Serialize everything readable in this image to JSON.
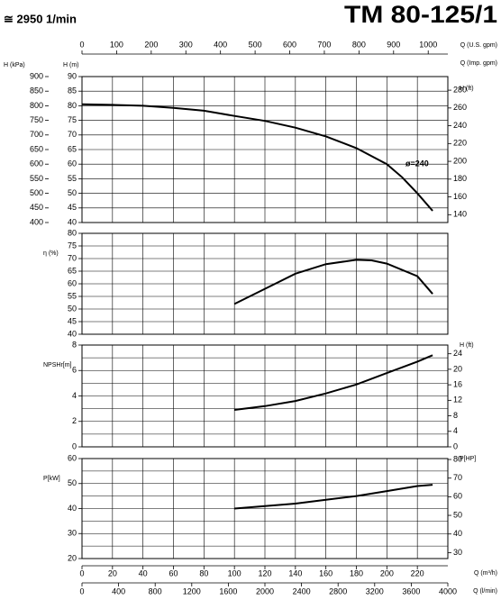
{
  "header": {
    "speed": "≅ 2950 1/min",
    "model": "TM 80-125/1"
  },
  "x_axes": {
    "top": {
      "label": "Q (U.S. gpm)",
      "lim": [
        0,
        1056.7
      ],
      "ticks": [
        0,
        100,
        200,
        300,
        400,
        500,
        600,
        700,
        800,
        900,
        1000
      ]
    },
    "top2": {
      "label": "Q (Imp. gpm)"
    },
    "bottom": {
      "label": "Q (m³/h)",
      "lim": [
        0,
        240
      ],
      "ticks": [
        0,
        20,
        40,
        60,
        80,
        100,
        120,
        140,
        160,
        180,
        200,
        220
      ]
    },
    "bottom2": {
      "label": "Q (l/min)",
      "lim": [
        0,
        4000
      ],
      "ticks": [
        0,
        400,
        800,
        1200,
        1600,
        2000,
        2400,
        2800,
        3200,
        3600,
        4000
      ]
    }
  },
  "chart_data": [
    {
      "type": "line",
      "ylabel": "H (m)",
      "ylim": [
        40,
        90
      ],
      "yticks": [
        40,
        45,
        50,
        55,
        60,
        65,
        70,
        75,
        80,
        85,
        90
      ],
      "y3label": "H (kPa)",
      "y3lim": [
        400,
        900
      ],
      "y3ticks": [
        400,
        450,
        500,
        550,
        600,
        650,
        700,
        750,
        800,
        850,
        900
      ],
      "y2label": "H (ft)",
      "y2lim": [
        131.2,
        295.3
      ],
      "y2ticks": [
        140,
        160,
        180,
        200,
        220,
        240,
        260,
        280
      ],
      "annotation": "ø=240",
      "series": [
        {
          "color": "#000000",
          "x": [
            0,
            20,
            40,
            60,
            80,
            100,
            120,
            140,
            160,
            180,
            200,
            210,
            220,
            230
          ],
          "values": [
            80.5,
            80.3,
            80,
            79.3,
            78.3,
            76.5,
            74.8,
            72.5,
            69.5,
            65.5,
            60,
            55.5,
            50,
            44
          ]
        }
      ]
    },
    {
      "type": "line",
      "ylabel": "η (%)",
      "ylim": [
        40,
        80
      ],
      "yticks": [
        40,
        45,
        50,
        55,
        60,
        65,
        70,
        75,
        80
      ],
      "series": [
        {
          "color": "#000000",
          "x": [
            100,
            120,
            140,
            160,
            180,
            190,
            200,
            220,
            230
          ],
          "values": [
            52,
            58,
            64,
            67.8,
            69.5,
            69.3,
            68,
            63,
            56
          ]
        }
      ]
    },
    {
      "type": "line",
      "ylabel": "NPSHr[m]",
      "ylim": [
        0,
        8
      ],
      "yticks": [
        0,
        2,
        4,
        6,
        8
      ],
      "yminor": [
        1,
        3,
        5,
        7
      ],
      "y2label": "H (ft)",
      "y2lim": [
        0,
        26.25
      ],
      "y2ticks": [
        0,
        4,
        8,
        12,
        16,
        20,
        24
      ],
      "series": [
        {
          "color": "#000000",
          "x": [
            100,
            120,
            140,
            160,
            180,
            200,
            220,
            230
          ],
          "values": [
            2.9,
            3.2,
            3.6,
            4.2,
            4.9,
            5.8,
            6.7,
            7.2
          ]
        }
      ]
    },
    {
      "type": "line",
      "ylabel": "P[kW]",
      "ylim": [
        20,
        60
      ],
      "yticks": [
        20,
        30,
        40,
        50,
        60
      ],
      "yminor": [
        25,
        35,
        45,
        55
      ],
      "y2label": "P[HP]",
      "y2lim": [
        26.8,
        80.5
      ],
      "y2ticks": [
        30,
        40,
        50,
        60,
        70,
        80
      ],
      "series": [
        {
          "color": "#000000",
          "x": [
            100,
            120,
            140,
            160,
            180,
            200,
            220,
            230
          ],
          "values": [
            40,
            41,
            42,
            43.5,
            45,
            47,
            49,
            49.5
          ]
        }
      ]
    }
  ]
}
